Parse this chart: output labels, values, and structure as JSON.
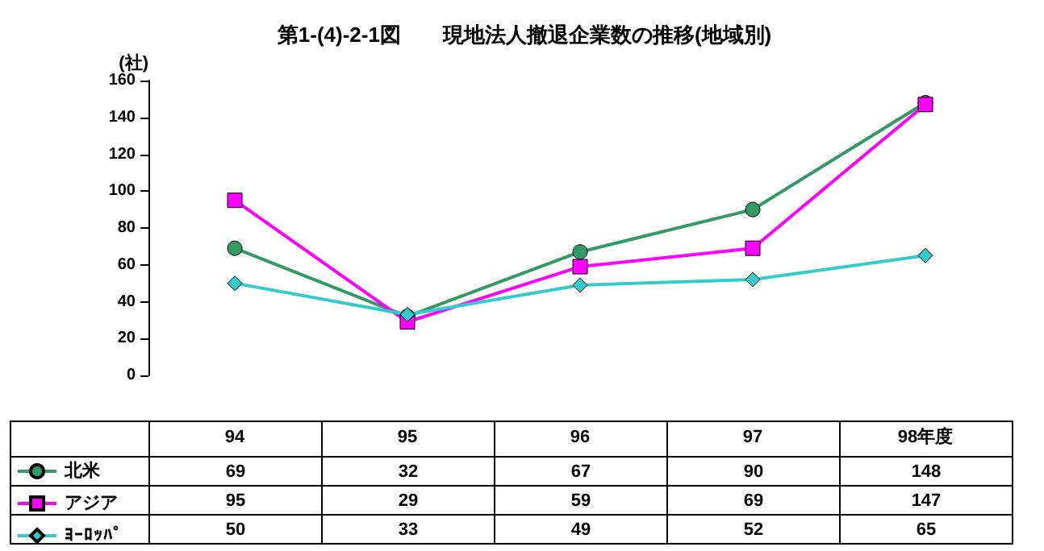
{
  "chart_data": {
    "type": "line",
    "title": "第1-(4)-2-1図　　現地法人撤退企業数の推移(地域別)",
    "ylabel": "(社)",
    "categories": [
      "94",
      "95",
      "96",
      "97",
      "98年度"
    ],
    "series": [
      {
        "name": "北米",
        "color": "#339966",
        "marker": "circle",
        "values": [
          69,
          32,
          67,
          90,
          148
        ]
      },
      {
        "name": "アジア",
        "color": "#ff00ff",
        "marker": "square",
        "values": [
          95,
          29,
          59,
          69,
          147
        ]
      },
      {
        "name": "ﾖｰﾛｯﾊﾟ",
        "color": "#33cccc",
        "marker": "diamond",
        "values": [
          50,
          33,
          49,
          52,
          65
        ]
      }
    ],
    "ylim": [
      0,
      160
    ],
    "yticks": [
      0,
      20,
      40,
      60,
      80,
      100,
      120,
      140,
      160
    ],
    "grid": false,
    "legend": "bottom left",
    "data_labels": true
  }
}
